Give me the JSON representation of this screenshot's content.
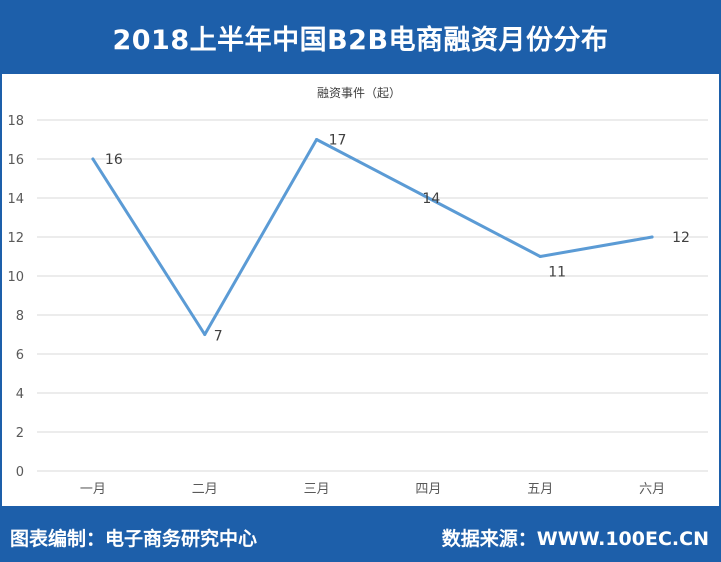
{
  "header": {
    "title": "2018上半年中国B2B电商融资月份分布"
  },
  "footer": {
    "left_text": "图表编制：电子商务研究中心",
    "right_text": "数据来源：WWW.100EC.CN"
  },
  "colors": {
    "frame": "#1d5faa",
    "line": "#5b9bd5",
    "grid": "#d9d9d9"
  },
  "chart_data": {
    "type": "line",
    "title": "融资事件（起）",
    "categories": [
      "一月",
      "二月",
      "三月",
      "四月",
      "五月",
      "六月"
    ],
    "values": [
      16,
      7,
      17,
      14,
      11,
      12
    ],
    "ylim": [
      0,
      18
    ],
    "yticks": [
      0,
      2,
      4,
      6,
      8,
      10,
      12,
      14,
      16,
      18
    ],
    "grid": true,
    "legend": "none",
    "data_labels": true
  }
}
